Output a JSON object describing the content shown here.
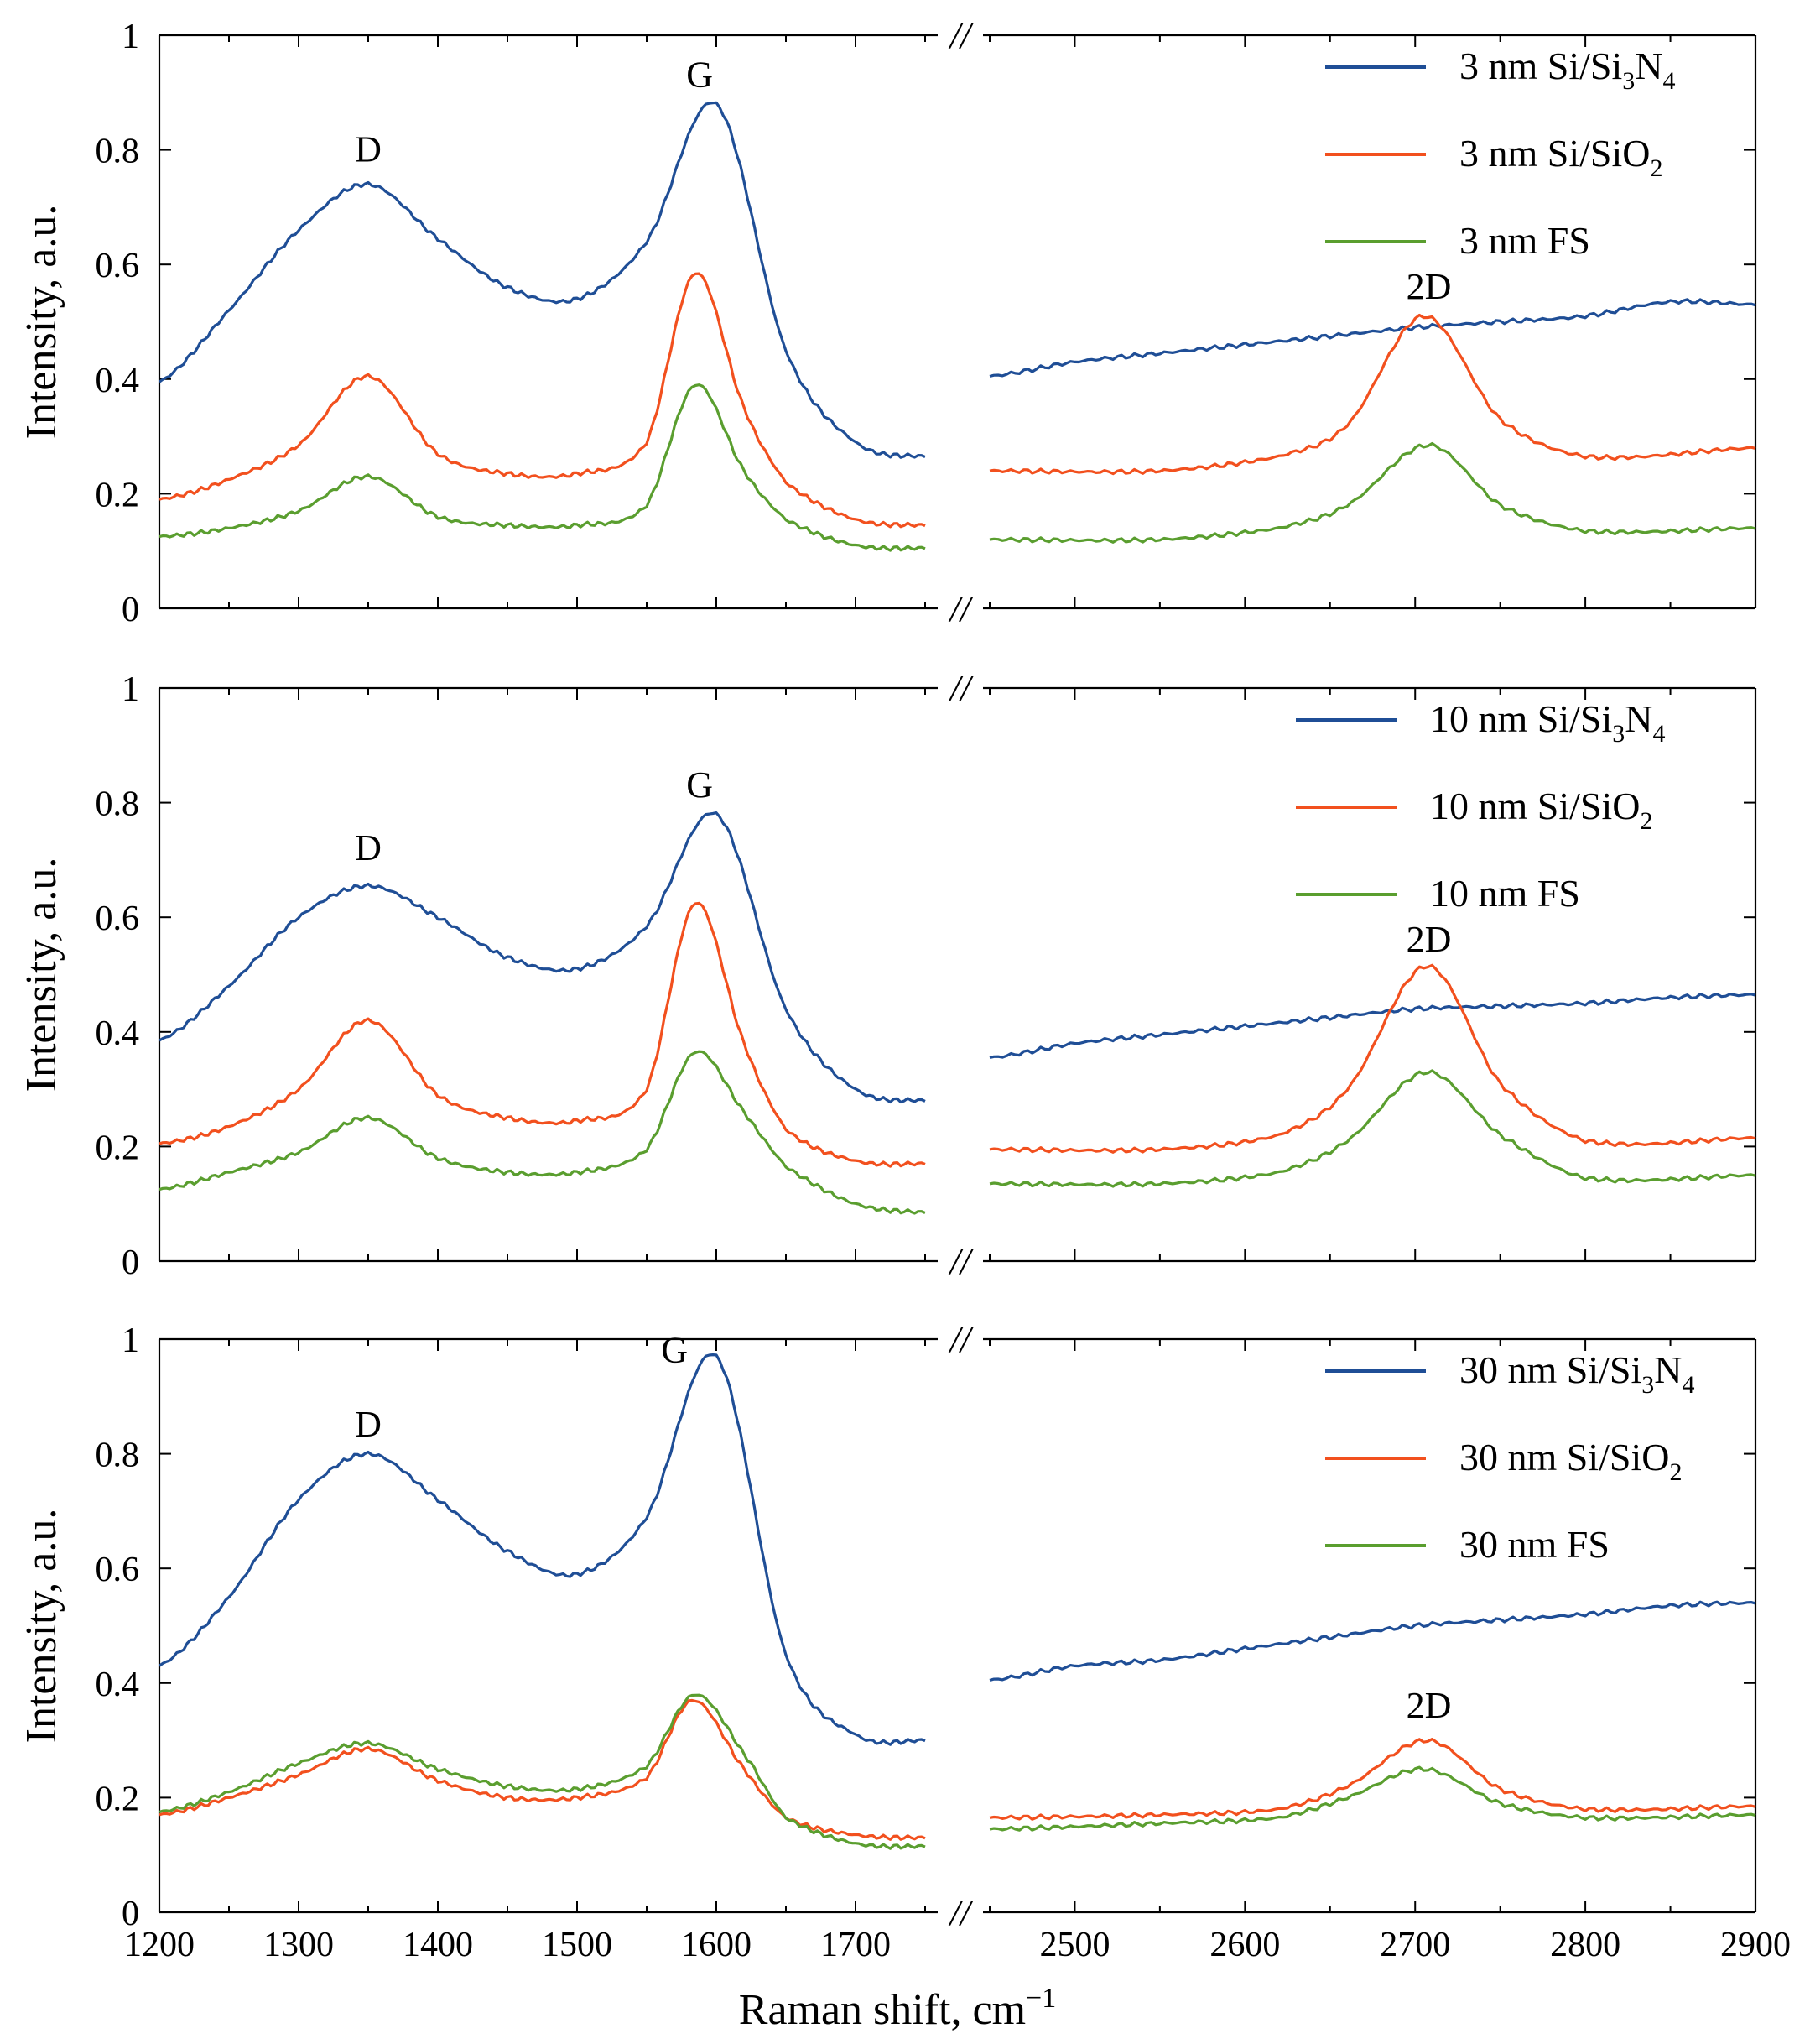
{
  "figure": {
    "x_axis_label": "Raman shift, cm",
    "x_axis_superscript": "−1",
    "break_symbol": "//"
  },
  "chart_data": [
    {
      "type": "line",
      "id": "panel-3nm",
      "ylabel": "Intensity, a.u.",
      "ylim": [
        0,
        1
      ],
      "yticks": [
        0,
        0.2,
        0.4,
        0.6,
        0.8,
        1
      ],
      "ytick_labels": [
        "0",
        "0.2",
        "0.4",
        "0.6",
        "0.8",
        "1"
      ],
      "xlim_left": [
        1200,
        1750
      ],
      "xlim_right": [
        2450,
        2900
      ],
      "xtick_labels_left": [
        "1200",
        "1300",
        "1400",
        "1500",
        "1600",
        "1700"
      ],
      "xtick_labels_right": [
        "2500",
        "2600",
        "2700",
        "2800",
        "2900"
      ],
      "show_xtick_labels": false,
      "legend_position": "top-right",
      "annotations": [
        {
          "text": "D",
          "x": 1350,
          "y": 0.78
        },
        {
          "text": "G",
          "x": 1588,
          "y": 0.91
        },
        {
          "text": "2D",
          "x": 2708,
          "y": 0.54
        }
      ],
      "series": [
        {
          "name": "3 nm Si/Si3N4",
          "base": "3 nm Si/Si",
          "sub1": "3",
          "mid": "N",
          "sub2": "4",
          "color": "#1f4e96",
          "left": [
            [
              1200,
              0.395
            ],
            [
              1250,
              0.52
            ],
            [
              1300,
              0.66
            ],
            [
              1350,
              0.74
            ],
            [
              1400,
              0.645
            ],
            [
              1450,
              0.56
            ],
            [
              1500,
              0.54
            ],
            [
              1550,
              0.64
            ],
            [
              1600,
              0.88
            ],
            [
              1650,
              0.45
            ],
            [
              1700,
              0.29
            ],
            [
              1750,
              0.265
            ]
          ],
          "right": [
            [
              2450,
              0.405
            ],
            [
              2500,
              0.43
            ],
            [
              2550,
              0.445
            ],
            [
              2600,
              0.46
            ],
            [
              2650,
              0.475
            ],
            [
              2700,
              0.49
            ],
            [
              2750,
              0.5
            ],
            [
              2800,
              0.51
            ],
            [
              2850,
              0.535
            ],
            [
              2900,
              0.53
            ]
          ]
        },
        {
          "name": "3 nm Si/SiO2",
          "base": "3 nm Si/SiO",
          "sub1": "2",
          "color": "#f2501e",
          "left": [
            [
              1200,
              0.19
            ],
            [
              1250,
              0.225
            ],
            [
              1300,
              0.285
            ],
            [
              1350,
              0.405
            ],
            [
              1400,
              0.27
            ],
            [
              1450,
              0.235
            ],
            [
              1500,
              0.235
            ],
            [
              1550,
              0.29
            ],
            [
              1585,
              0.585
            ],
            [
              1620,
              0.35
            ],
            [
              1650,
              0.22
            ],
            [
              1700,
              0.155
            ],
            [
              1750,
              0.145
            ]
          ],
          "right": [
            [
              2450,
              0.24
            ],
            [
              2550,
              0.24
            ],
            [
              2620,
              0.265
            ],
            [
              2660,
              0.32
            ],
            [
              2705,
              0.51
            ],
            [
              2750,
              0.33
            ],
            [
              2800,
              0.265
            ],
            [
              2900,
              0.28
            ]
          ]
        },
        {
          "name": "3 nm FS",
          "base": "3 nm FS",
          "color": "#5a9e2f",
          "left": [
            [
              1200,
              0.125
            ],
            [
              1250,
              0.14
            ],
            [
              1300,
              0.17
            ],
            [
              1350,
              0.23
            ],
            [
              1400,
              0.16
            ],
            [
              1450,
              0.145
            ],
            [
              1500,
              0.145
            ],
            [
              1550,
              0.18
            ],
            [
              1585,
              0.39
            ],
            [
              1620,
              0.24
            ],
            [
              1650,
              0.155
            ],
            [
              1700,
              0.11
            ],
            [
              1750,
              0.105
            ]
          ],
          "right": [
            [
              2450,
              0.12
            ],
            [
              2550,
              0.12
            ],
            [
              2620,
              0.14
            ],
            [
              2660,
              0.18
            ],
            [
              2708,
              0.285
            ],
            [
              2750,
              0.18
            ],
            [
              2800,
              0.135
            ],
            [
              2900,
              0.14
            ]
          ]
        }
      ]
    },
    {
      "type": "line",
      "id": "panel-10nm",
      "ylabel": "Intensity, a.u.",
      "ylim": [
        0,
        1
      ],
      "yticks": [
        0,
        0.2,
        0.4,
        0.6,
        0.8,
        1
      ],
      "ytick_labels": [
        "0",
        "0.2",
        "0.4",
        "0.6",
        "0.8",
        "1"
      ],
      "xlim_left": [
        1200,
        1750
      ],
      "xlim_right": [
        2450,
        2900
      ],
      "xtick_labels_left": [
        "1200",
        "1300",
        "1400",
        "1500",
        "1600",
        "1700"
      ],
      "xtick_labels_right": [
        "2500",
        "2600",
        "2700",
        "2800",
        "2900"
      ],
      "show_xtick_labels": false,
      "legend_position": "top-right",
      "annotations": [
        {
          "text": "D",
          "x": 1350,
          "y": 0.7
        },
        {
          "text": "G",
          "x": 1588,
          "y": 0.81
        },
        {
          "text": "2D",
          "x": 2708,
          "y": 0.54
        }
      ],
      "series": [
        {
          "name": "10 nm Si/Si3N4",
          "base": "10 nm Si/Si",
          "sub1": "3",
          "mid": "N",
          "sub2": "4",
          "color": "#1f4e96",
          "left": [
            [
              1200,
              0.385
            ],
            [
              1250,
              0.48
            ],
            [
              1300,
              0.6
            ],
            [
              1350,
              0.655
            ],
            [
              1400,
              0.6
            ],
            [
              1450,
              0.53
            ],
            [
              1500,
              0.51
            ],
            [
              1550,
              0.585
            ],
            [
              1600,
              0.78
            ],
            [
              1650,
              0.44
            ],
            [
              1700,
              0.3
            ],
            [
              1750,
              0.28
            ]
          ],
          "right": [
            [
              2450,
              0.355
            ],
            [
              2500,
              0.38
            ],
            [
              2550,
              0.395
            ],
            [
              2600,
              0.41
            ],
            [
              2650,
              0.425
            ],
            [
              2700,
              0.44
            ],
            [
              2750,
              0.445
            ],
            [
              2800,
              0.45
            ],
            [
              2850,
              0.46
            ],
            [
              2900,
              0.465
            ]
          ]
        },
        {
          "name": "10 nm Si/SiO2",
          "base": "10 nm Si/SiO",
          "sub1": "2",
          "color": "#f2501e",
          "left": [
            [
              1200,
              0.205
            ],
            [
              1250,
              0.235
            ],
            [
              1300,
              0.3
            ],
            [
              1350,
              0.42
            ],
            [
              1400,
              0.29
            ],
            [
              1450,
              0.25
            ],
            [
              1500,
              0.245
            ],
            [
              1550,
              0.3
            ],
            [
              1585,
              0.625
            ],
            [
              1620,
              0.38
            ],
            [
              1650,
              0.23
            ],
            [
              1700,
              0.175
            ],
            [
              1750,
              0.17
            ]
          ],
          "right": [
            [
              2450,
              0.195
            ],
            [
              2550,
              0.195
            ],
            [
              2620,
              0.22
            ],
            [
              2660,
              0.3
            ],
            [
              2707,
              0.515
            ],
            [
              2750,
              0.31
            ],
            [
              2800,
              0.21
            ],
            [
              2900,
              0.215
            ]
          ]
        },
        {
          "name": "10 nm FS",
          "base": "10 nm FS",
          "color": "#5a9e2f",
          "left": [
            [
              1200,
              0.125
            ],
            [
              1250,
              0.155
            ],
            [
              1300,
              0.19
            ],
            [
              1350,
              0.25
            ],
            [
              1400,
              0.18
            ],
            [
              1450,
              0.155
            ],
            [
              1500,
              0.155
            ],
            [
              1550,
              0.195
            ],
            [
              1585,
              0.365
            ],
            [
              1620,
              0.26
            ],
            [
              1650,
              0.165
            ],
            [
              1700,
              0.1
            ],
            [
              1750,
              0.085
            ]
          ],
          "right": [
            [
              2450,
              0.135
            ],
            [
              2550,
              0.135
            ],
            [
              2620,
              0.155
            ],
            [
              2660,
              0.21
            ],
            [
              2707,
              0.33
            ],
            [
              2750,
              0.22
            ],
            [
              2800,
              0.145
            ],
            [
              2900,
              0.15
            ]
          ]
        }
      ]
    },
    {
      "type": "line",
      "id": "panel-30nm",
      "ylabel": "Intensity, a.u.",
      "ylim": [
        0,
        1
      ],
      "yticks": [
        0,
        0.2,
        0.4,
        0.6,
        0.8,
        1
      ],
      "ytick_labels": [
        "0",
        "0.2",
        "0.4",
        "0.6",
        "0.8",
        "1"
      ],
      "xlim_left": [
        1200,
        1750
      ],
      "xlim_right": [
        2450,
        2900
      ],
      "xtick_labels_left": [
        "1200",
        "1300",
        "1400",
        "1500",
        "1600",
        "1700"
      ],
      "xtick_labels_right": [
        "2500",
        "2600",
        "2700",
        "2800",
        "2900"
      ],
      "show_xtick_labels": true,
      "legend_position": "top-right",
      "annotations": [
        {
          "text": "D",
          "x": 1350,
          "y": 0.83
        },
        {
          "text": "G",
          "x": 1570,
          "y": 0.96
        },
        {
          "text": "2D",
          "x": 2708,
          "y": 0.34
        }
      ],
      "series": [
        {
          "name": "30 nm Si/Si3N4",
          "base": "30 nm Si/Si",
          "sub1": "3",
          "mid": "N",
          "sub2": "4",
          "color": "#1f4e96",
          "left": [
            [
              1200,
              0.43
            ],
            [
              1250,
              0.55
            ],
            [
              1300,
              0.72
            ],
            [
              1350,
              0.8
            ],
            [
              1400,
              0.72
            ],
            [
              1450,
              0.63
            ],
            [
              1500,
              0.59
            ],
            [
              1550,
              0.69
            ],
            [
              1600,
              0.97
            ],
            [
              1650,
              0.45
            ],
            [
              1700,
              0.31
            ],
            [
              1750,
              0.3
            ]
          ],
          "right": [
            [
              2450,
              0.405
            ],
            [
              2500,
              0.43
            ],
            [
              2550,
              0.44
            ],
            [
              2600,
              0.46
            ],
            [
              2650,
              0.48
            ],
            [
              2700,
              0.5
            ],
            [
              2750,
              0.51
            ],
            [
              2800,
              0.52
            ],
            [
              2850,
              0.535
            ],
            [
              2900,
              0.54
            ]
          ]
        },
        {
          "name": "30 nm Si/SiO2",
          "base": "30 nm Si/SiO",
          "sub1": "2",
          "color": "#f2501e",
          "left": [
            [
              1200,
              0.17
            ],
            [
              1250,
              0.2
            ],
            [
              1300,
              0.24
            ],
            [
              1350,
              0.285
            ],
            [
              1400,
              0.23
            ],
            [
              1450,
              0.2
            ],
            [
              1500,
              0.2
            ],
            [
              1550,
              0.235
            ],
            [
              1583,
              0.37
            ],
            [
              1620,
              0.25
            ],
            [
              1650,
              0.165
            ],
            [
              1700,
              0.135
            ],
            [
              1750,
              0.13
            ]
          ],
          "right": [
            [
              2450,
              0.165
            ],
            [
              2550,
              0.17
            ],
            [
              2620,
              0.18
            ],
            [
              2660,
              0.22
            ],
            [
              2707,
              0.3
            ],
            [
              2750,
              0.215
            ],
            [
              2800,
              0.18
            ],
            [
              2900,
              0.185
            ]
          ]
        },
        {
          "name": "30 nm FS",
          "base": "30 nm FS",
          "color": "#5a9e2f",
          "left": [
            [
              1200,
              0.175
            ],
            [
              1250,
              0.21
            ],
            [
              1300,
              0.26
            ],
            [
              1350,
              0.295
            ],
            [
              1400,
              0.25
            ],
            [
              1450,
              0.22
            ],
            [
              1500,
              0.215
            ],
            [
              1550,
              0.255
            ],
            [
              1585,
              0.38
            ],
            [
              1625,
              0.26
            ],
            [
              1650,
              0.165
            ],
            [
              1700,
              0.12
            ],
            [
              1750,
              0.115
            ]
          ],
          "right": [
            [
              2450,
              0.145
            ],
            [
              2550,
              0.155
            ],
            [
              2620,
              0.165
            ],
            [
              2660,
              0.2
            ],
            [
              2705,
              0.25
            ],
            [
              2750,
              0.19
            ],
            [
              2800,
              0.165
            ],
            [
              2900,
              0.17
            ]
          ]
        }
      ]
    }
  ]
}
